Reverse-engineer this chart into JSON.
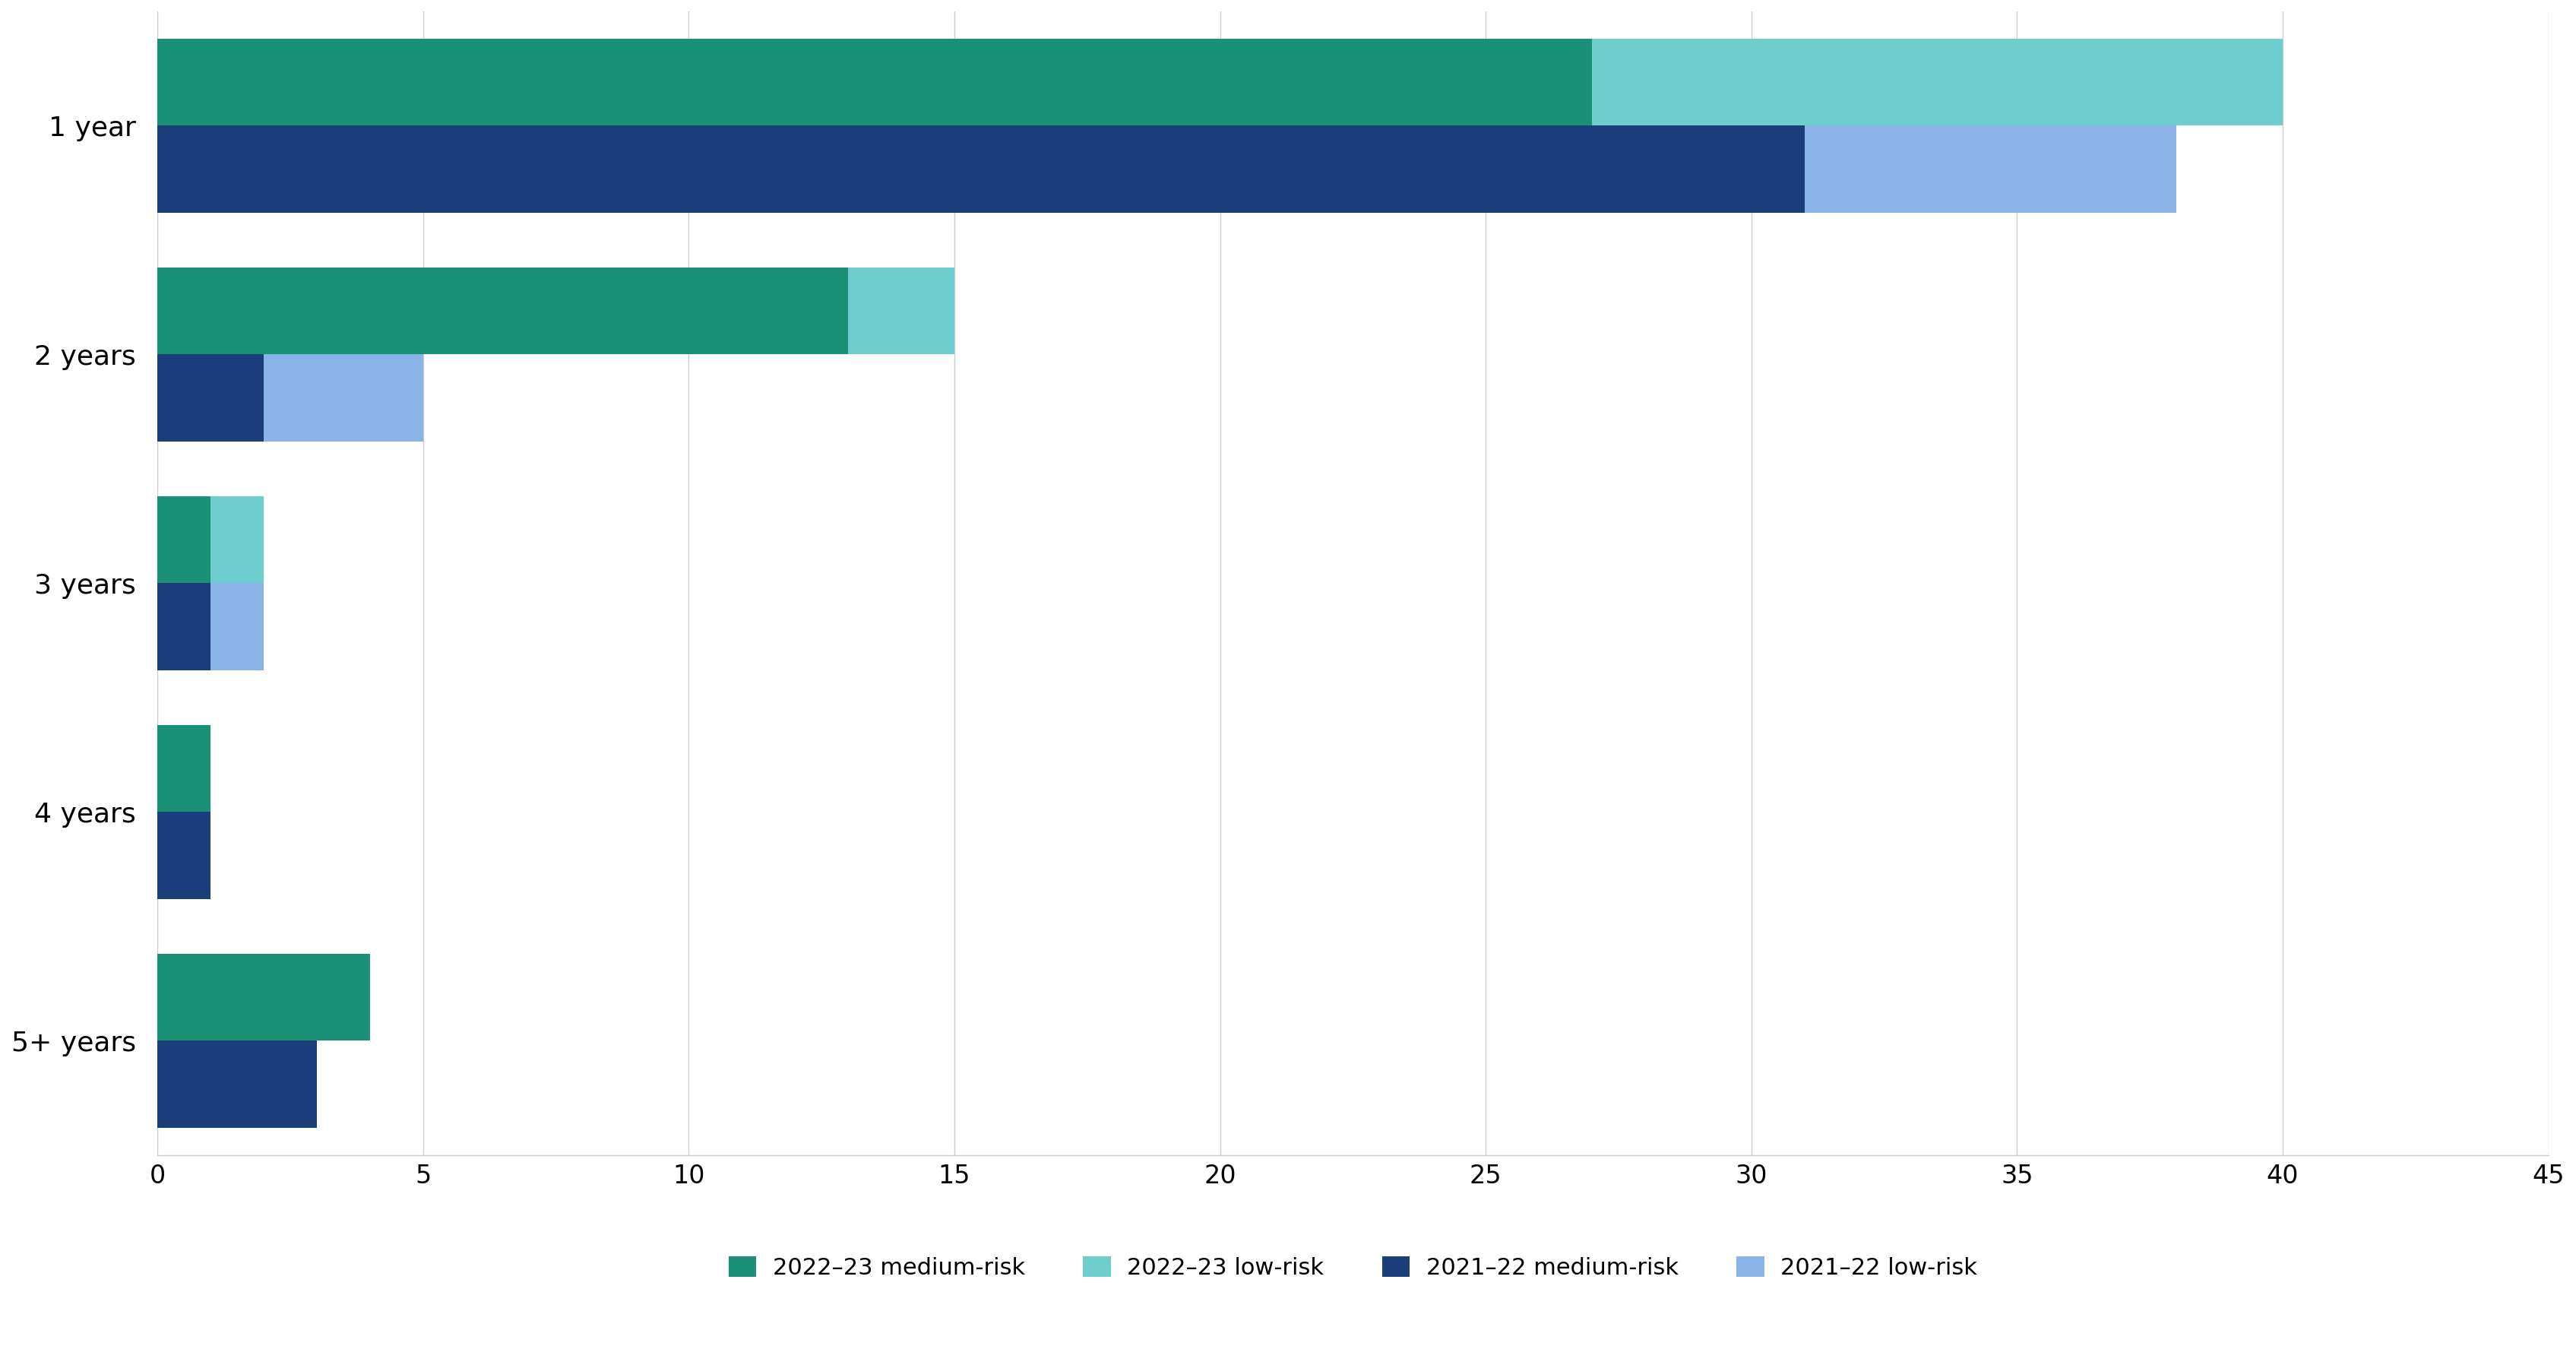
{
  "categories": [
    "1 year",
    "2 years",
    "3 years",
    "4 years",
    "5+ years"
  ],
  "series": {
    "2022_23_medium": [
      27,
      13,
      1,
      1,
      4
    ],
    "2022_23_low": [
      13,
      2,
      1,
      0,
      0
    ],
    "2021_22_medium": [
      31,
      2,
      1,
      1,
      3
    ],
    "2021_22_low": [
      7,
      3,
      1,
      0,
      0
    ]
  },
  "colors": {
    "2022_23_medium": "#1a9176",
    "2022_23_low": "#6ecece",
    "2021_22_medium": "#1b3e7a",
    "2021_22_low": "#8ab4e8"
  },
  "legend_labels": {
    "2022_23_medium": "2022–23 medium-risk",
    "2022_23_low": "2022–23 low-risk",
    "2021_22_medium": "2021–22 medium-risk",
    "2021_22_low": "2021–22 low-risk"
  },
  "xlim": [
    0,
    45
  ],
  "xticks": [
    0,
    5,
    10,
    15,
    20,
    25,
    30,
    35,
    40,
    45
  ],
  "bar_height": 0.38,
  "background_color": "#ffffff",
  "grid_color": "#cccccc",
  "tick_fontsize": 24,
  "legend_fontsize": 22
}
